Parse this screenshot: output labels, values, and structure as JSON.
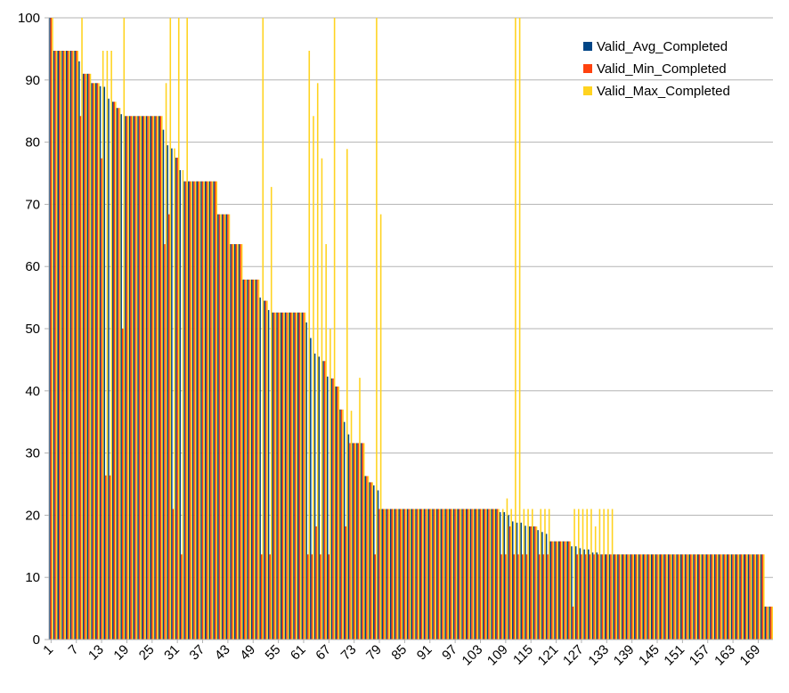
{
  "chart_data": {
    "type": "bar",
    "title": "",
    "xlabel": "",
    "ylabel": "",
    "ylim": [
      0,
      100
    ],
    "yticks": [
      0,
      10,
      20,
      30,
      40,
      50,
      60,
      70,
      80,
      90,
      100
    ],
    "grid": true,
    "legend_position": "top-right",
    "x_start": 1,
    "x_end": 172,
    "x_tick_labels": [
      "1",
      "7",
      "13",
      "19",
      "25",
      "31",
      "37",
      "43",
      "49",
      "55",
      "61",
      "67",
      "73",
      "79",
      "85",
      "91",
      "97",
      "103",
      "109",
      "115",
      "121",
      "127",
      "133",
      "139",
      "145",
      "151",
      "157",
      "163",
      "169"
    ],
    "colors": {
      "Valid_Avg_Completed": "#004586",
      "Valid_Min_Completed": "#ff420e",
      "Valid_Max_Completed": "#ffd320",
      "grid": "#b3b3b3",
      "axis": "#b3b3b3"
    },
    "series": [
      {
        "name": "Valid_Avg_Completed",
        "profile": [
          [
            1,
            100
          ],
          [
            2,
            94.7
          ],
          [
            7,
            94.7
          ],
          [
            8,
            93
          ],
          [
            9,
            91
          ],
          [
            11,
            89.5
          ],
          [
            13,
            89
          ],
          [
            14,
            88.9
          ],
          [
            15,
            87
          ],
          [
            16,
            86.5
          ],
          [
            17,
            85.5
          ],
          [
            18,
            84.5
          ],
          [
            19,
            84.2
          ],
          [
            27,
            84.2
          ],
          [
            28,
            82
          ],
          [
            29,
            79.5
          ],
          [
            30,
            79
          ],
          [
            31,
            77.5
          ],
          [
            32,
            75.5
          ],
          [
            33,
            73.7
          ],
          [
            40,
            73.7
          ],
          [
            41,
            68.4
          ],
          [
            43,
            68.4
          ],
          [
            44,
            63.6
          ],
          [
            46,
            63.6
          ],
          [
            47,
            57.9
          ],
          [
            50,
            57.9
          ],
          [
            51,
            55
          ],
          [
            52,
            54.5
          ],
          [
            53,
            53
          ],
          [
            54,
            52.6
          ],
          [
            61,
            52.6
          ],
          [
            62,
            51
          ],
          [
            63,
            48.5
          ],
          [
            64,
            46
          ],
          [
            65,
            45.5
          ],
          [
            66,
            44.8
          ],
          [
            67,
            42.3
          ],
          [
            68,
            42
          ],
          [
            69,
            40.7
          ],
          [
            70,
            37
          ],
          [
            71,
            35
          ],
          [
            72,
            33
          ],
          [
            73,
            31.6
          ],
          [
            75,
            31.6
          ],
          [
            76,
            26.3
          ],
          [
            77,
            25.3
          ],
          [
            78,
            24.8
          ],
          [
            79,
            24
          ],
          [
            80,
            21
          ],
          [
            107,
            21
          ],
          [
            108,
            20.5
          ],
          [
            110,
            20
          ],
          [
            111,
            19
          ],
          [
            112,
            18.8
          ],
          [
            114,
            18.3
          ],
          [
            115,
            18.2
          ],
          [
            117,
            17.6
          ],
          [
            118,
            17.3
          ],
          [
            119,
            17
          ],
          [
            120,
            15.8
          ],
          [
            124,
            15.8
          ],
          [
            125,
            15
          ],
          [
            127,
            14.7
          ],
          [
            128,
            14.5
          ],
          [
            130,
            14
          ],
          [
            132,
            13.7
          ],
          [
            170,
            13.7
          ],
          [
            171,
            5.3
          ],
          [
            172,
            5.3
          ]
        ]
      },
      {
        "name": "Valid_Min_Completed",
        "profile": [
          [
            1,
            100
          ],
          [
            2,
            94.7
          ],
          [
            7,
            94.7
          ],
          [
            8,
            84.2
          ],
          [
            9,
            91
          ],
          [
            11,
            89.5
          ],
          [
            13,
            77.4
          ],
          [
            14,
            26.4
          ],
          [
            15,
            26.4
          ],
          [
            16,
            86.5
          ],
          [
            17,
            85.5
          ],
          [
            18,
            50
          ],
          [
            19,
            84.2
          ],
          [
            27,
            84.2
          ],
          [
            28,
            63.6
          ],
          [
            29,
            68.4
          ],
          [
            30,
            21
          ],
          [
            31,
            77.5
          ],
          [
            32,
            13.7
          ],
          [
            33,
            73.7
          ],
          [
            40,
            73.7
          ],
          [
            41,
            68.4
          ],
          [
            43,
            68.4
          ],
          [
            44,
            63.6
          ],
          [
            46,
            63.6
          ],
          [
            47,
            57.9
          ],
          [
            50,
            57.9
          ],
          [
            51,
            13.7
          ],
          [
            52,
            54.5
          ],
          [
            53,
            13.7
          ],
          [
            54,
            52.6
          ],
          [
            61,
            52.6
          ],
          [
            62,
            13.7
          ],
          [
            64,
            18.2
          ],
          [
            65,
            13.7
          ],
          [
            66,
            44.8
          ],
          [
            67,
            13.7
          ],
          [
            68,
            42
          ],
          [
            69,
            40.7
          ],
          [
            70,
            37
          ],
          [
            71,
            18.2
          ],
          [
            72,
            31.6
          ],
          [
            75,
            31.6
          ],
          [
            76,
            26.3
          ],
          [
            77,
            25.3
          ],
          [
            78,
            13.7
          ],
          [
            79,
            21
          ],
          [
            107,
            21
          ],
          [
            108,
            13.7
          ],
          [
            110,
            18.2
          ],
          [
            111,
            13.7
          ],
          [
            115,
            18.2
          ],
          [
            117,
            13.7
          ],
          [
            120,
            15.8
          ],
          [
            124,
            15.8
          ],
          [
            125,
            5.3
          ],
          [
            126,
            13.7
          ],
          [
            170,
            13.7
          ],
          [
            171,
            5.3
          ],
          [
            172,
            5.3
          ]
        ]
      },
      {
        "name": "Valid_Max_Completed",
        "profile": [
          [
            1,
            100
          ],
          [
            2,
            94.7
          ],
          [
            8,
            100
          ],
          [
            9,
            91
          ],
          [
            11,
            89.5
          ],
          [
            13,
            94.7
          ],
          [
            16,
            86.5
          ],
          [
            17,
            85.5
          ],
          [
            18,
            100
          ],
          [
            19,
            84.2
          ],
          [
            28,
            89.5
          ],
          [
            29,
            100
          ],
          [
            30,
            79
          ],
          [
            31,
            100
          ],
          [
            32,
            75.5
          ],
          [
            33,
            100
          ],
          [
            34,
            73.7
          ],
          [
            41,
            68.4
          ],
          [
            44,
            63.6
          ],
          [
            47,
            57.9
          ],
          [
            51,
            100
          ],
          [
            52,
            54.5
          ],
          [
            53,
            72.8
          ],
          [
            54,
            52.6
          ],
          [
            62,
            94.7
          ],
          [
            63,
            84.2
          ],
          [
            64,
            89.5
          ],
          [
            65,
            77.4
          ],
          [
            66,
            63.6
          ],
          [
            67,
            50
          ],
          [
            68,
            100
          ],
          [
            69,
            40.7
          ],
          [
            70,
            37
          ],
          [
            71,
            78.9
          ],
          [
            72,
            36.8
          ],
          [
            73,
            31.6
          ],
          [
            74,
            42.1
          ],
          [
            75,
            31.6
          ],
          [
            76,
            26.3
          ],
          [
            77,
            25.3
          ],
          [
            78,
            100
          ],
          [
            79,
            68.4
          ],
          [
            80,
            21
          ],
          [
            108,
            21
          ],
          [
            109,
            22.7
          ],
          [
            110,
            21
          ],
          [
            111,
            100
          ],
          [
            112,
            100
          ],
          [
            113,
            21
          ],
          [
            116,
            18.2
          ],
          [
            117,
            21
          ],
          [
            120,
            15.8
          ],
          [
            125,
            21
          ],
          [
            130,
            18.2
          ],
          [
            131,
            21
          ],
          [
            135,
            13.7
          ],
          [
            171,
            5.3
          ]
        ]
      }
    ]
  }
}
